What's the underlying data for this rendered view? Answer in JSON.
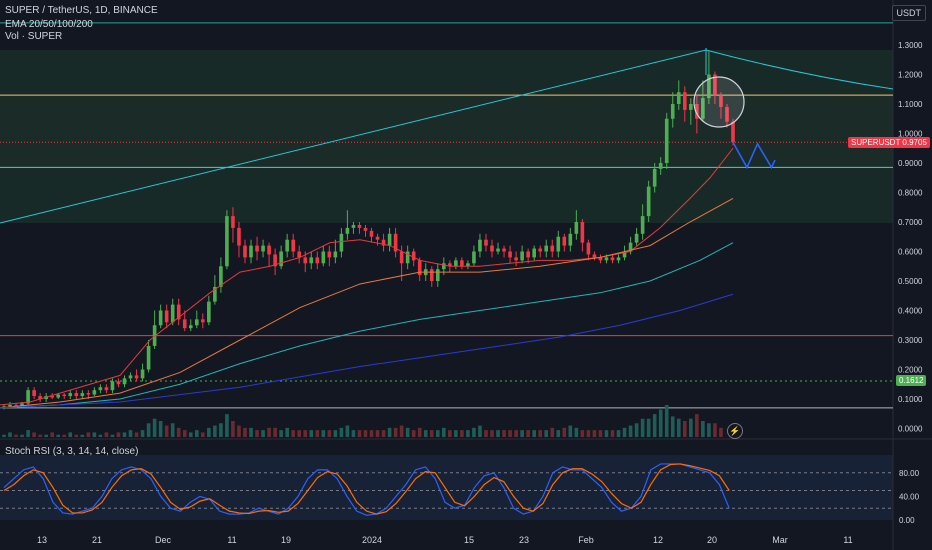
{
  "header": {
    "title": "SUPER / TetherUS, 1D, BINANCE",
    "indicator_ema": "EMA 20/50/100/200",
    "indicator_vol": "Vol · SUPER"
  },
  "rsi_panel": {
    "title": "Stoch RSI (3, 3, 14, 14, close)"
  },
  "badges": {
    "unit": "USDT",
    "price_label": "SUPERUSDT 0.9705",
    "green_level": "0.1612"
  },
  "colors": {
    "background": "#131722",
    "up": "#26a69a",
    "up_bright": "#4caf50",
    "down": "#f23645",
    "ema20": "#e53b3b",
    "ema50": "#e8793a",
    "ema100": "#21b5b5",
    "ema200": "#2a3bd1",
    "resistance_line": "#f5c36b",
    "support_line": "#f23645",
    "k_line": "#2962ff",
    "d_line": "#ff6d00"
  },
  "chart_data": {
    "type": "candlestick",
    "symbol": "SUPER / TetherUS",
    "timeframe": "1D",
    "exchange": "BINANCE",
    "x_ticks": [
      "13",
      "21",
      "Dec",
      "11",
      "19",
      "2024",
      "15",
      "23",
      "Feb",
      "12",
      "20",
      "Mar",
      "11"
    ],
    "y_ticks": [
      "1.3000",
      "1.2000",
      "1.1000",
      "1.0000",
      "0.9000",
      "0.8000",
      "0.7000",
      "0.6000",
      "0.5000",
      "0.4000",
      "0.3000",
      "0.2000",
      "0.1000",
      "0.0000"
    ],
    "ylim": [
      0.0,
      1.3
    ],
    "last_price": 0.9705,
    "levels": [
      {
        "name": "resistance",
        "value": 1.13
      },
      {
        "name": "current",
        "value": 0.9705
      },
      {
        "name": "support-cyan",
        "value": 0.885
      },
      {
        "name": "support-red",
        "value": 0.315
      },
      {
        "name": "green-dotted",
        "value": 0.1612
      },
      {
        "name": "white-base",
        "value": 0.07
      },
      {
        "name": "top-cyan",
        "value": 1.375
      }
    ],
    "ema": {
      "ema20": [
        [
          0,
          0.08
        ],
        [
          30,
          0.09
        ],
        [
          60,
          0.12
        ],
        [
          90,
          0.15
        ],
        [
          120,
          0.18
        ],
        [
          150,
          0.3
        ],
        [
          180,
          0.38
        ],
        [
          210,
          0.46
        ],
        [
          240,
          0.53
        ],
        [
          270,
          0.55
        ],
        [
          300,
          0.58
        ],
        [
          330,
          0.63
        ],
        [
          360,
          0.64
        ],
        [
          390,
          0.62
        ],
        [
          420,
          0.57
        ],
        [
          450,
          0.55
        ],
        [
          480,
          0.55
        ],
        [
          510,
          0.56
        ],
        [
          540,
          0.57
        ],
        [
          570,
          0.57
        ],
        [
          600,
          0.58
        ],
        [
          630,
          0.6
        ],
        [
          660,
          0.68
        ],
        [
          690,
          0.78
        ],
        [
          710,
          0.85
        ],
        [
          733,
          0.95
        ]
      ],
      "ema50": [
        [
          0,
          0.07
        ],
        [
          60,
          0.09
        ],
        [
          120,
          0.12
        ],
        [
          180,
          0.19
        ],
        [
          240,
          0.3
        ],
        [
          300,
          0.41
        ],
        [
          360,
          0.49
        ],
        [
          420,
          0.53
        ],
        [
          480,
          0.53
        ],
        [
          540,
          0.55
        ],
        [
          600,
          0.58
        ],
        [
          650,
          0.62
        ],
        [
          690,
          0.7
        ],
        [
          733,
          0.78
        ]
      ],
      "ema100": [
        [
          0,
          0.07
        ],
        [
          60,
          0.08
        ],
        [
          120,
          0.1
        ],
        [
          180,
          0.15
        ],
        [
          240,
          0.22
        ],
        [
          300,
          0.28
        ],
        [
          360,
          0.33
        ],
        [
          420,
          0.37
        ],
        [
          480,
          0.4
        ],
        [
          540,
          0.43
        ],
        [
          600,
          0.46
        ],
        [
          650,
          0.5
        ],
        [
          700,
          0.57
        ],
        [
          733,
          0.63
        ]
      ],
      "ema200": [
        [
          0,
          0.07
        ],
        [
          120,
          0.09
        ],
        [
          240,
          0.14
        ],
        [
          360,
          0.21
        ],
        [
          480,
          0.27
        ],
        [
          560,
          0.31
        ],
        [
          620,
          0.35
        ],
        [
          680,
          0.4
        ],
        [
          733,
          0.455
        ]
      ]
    },
    "candles": [
      [
        0.07,
        0.075,
        0.065,
        0.08
      ],
      [
        0.075,
        0.08,
        0.07,
        0.09
      ],
      [
        0.08,
        0.078,
        0.07,
        0.085
      ],
      [
        0.078,
        0.085,
        0.075,
        0.09
      ],
      [
        0.085,
        0.13,
        0.08,
        0.14
      ],
      [
        0.13,
        0.11,
        0.1,
        0.14
      ],
      [
        0.11,
        0.1,
        0.09,
        0.12
      ],
      [
        0.1,
        0.11,
        0.09,
        0.12
      ],
      [
        0.11,
        0.105,
        0.1,
        0.12
      ],
      [
        0.105,
        0.115,
        0.1,
        0.12
      ],
      [
        0.115,
        0.11,
        0.1,
        0.12
      ],
      [
        0.11,
        0.12,
        0.1,
        0.13
      ],
      [
        0.12,
        0.11,
        0.1,
        0.13
      ],
      [
        0.11,
        0.12,
        0.1,
        0.13
      ],
      [
        0.12,
        0.115,
        0.1,
        0.13
      ],
      [
        0.115,
        0.13,
        0.11,
        0.14
      ],
      [
        0.13,
        0.14,
        0.12,
        0.15
      ],
      [
        0.14,
        0.13,
        0.12,
        0.15
      ],
      [
        0.13,
        0.16,
        0.12,
        0.17
      ],
      [
        0.16,
        0.15,
        0.14,
        0.17
      ],
      [
        0.15,
        0.17,
        0.14,
        0.18
      ],
      [
        0.17,
        0.18,
        0.16,
        0.19
      ],
      [
        0.18,
        0.17,
        0.16,
        0.2
      ],
      [
        0.17,
        0.2,
        0.16,
        0.22
      ],
      [
        0.2,
        0.28,
        0.19,
        0.3
      ],
      [
        0.28,
        0.35,
        0.27,
        0.4
      ],
      [
        0.35,
        0.4,
        0.34,
        0.42
      ],
      [
        0.4,
        0.36,
        0.34,
        0.42
      ],
      [
        0.36,
        0.42,
        0.35,
        0.44
      ],
      [
        0.42,
        0.37,
        0.35,
        0.44
      ],
      [
        0.37,
        0.34,
        0.33,
        0.4
      ],
      [
        0.34,
        0.35,
        0.33,
        0.37
      ],
      [
        0.35,
        0.37,
        0.34,
        0.4
      ],
      [
        0.37,
        0.36,
        0.34,
        0.39
      ],
      [
        0.36,
        0.43,
        0.35,
        0.45
      ],
      [
        0.43,
        0.48,
        0.42,
        0.52
      ],
      [
        0.48,
        0.55,
        0.46,
        0.58
      ],
      [
        0.55,
        0.72,
        0.54,
        0.74
      ],
      [
        0.72,
        0.68,
        0.63,
        0.75
      ],
      [
        0.68,
        0.62,
        0.58,
        0.7
      ],
      [
        0.62,
        0.58,
        0.56,
        0.64
      ],
      [
        0.58,
        0.62,
        0.56,
        0.64
      ],
      [
        0.62,
        0.6,
        0.57,
        0.65
      ],
      [
        0.6,
        0.62,
        0.58,
        0.64
      ],
      [
        0.62,
        0.59,
        0.55,
        0.63
      ],
      [
        0.59,
        0.55,
        0.52,
        0.61
      ],
      [
        0.55,
        0.6,
        0.54,
        0.62
      ],
      [
        0.6,
        0.64,
        0.58,
        0.66
      ],
      [
        0.64,
        0.6,
        0.58,
        0.66
      ],
      [
        0.6,
        0.58,
        0.56,
        0.62
      ],
      [
        0.58,
        0.56,
        0.53,
        0.6
      ],
      [
        0.56,
        0.58,
        0.54,
        0.6
      ],
      [
        0.58,
        0.56,
        0.54,
        0.6
      ],
      [
        0.56,
        0.6,
        0.55,
        0.62
      ],
      [
        0.6,
        0.58,
        0.55,
        0.62
      ],
      [
        0.58,
        0.6,
        0.56,
        0.64
      ],
      [
        0.6,
        0.66,
        0.58,
        0.68
      ],
      [
        0.66,
        0.68,
        0.64,
        0.74
      ],
      [
        0.68,
        0.69,
        0.66,
        0.7
      ],
      [
        0.69,
        0.68,
        0.66,
        0.7
      ],
      [
        0.68,
        0.67,
        0.65,
        0.69
      ],
      [
        0.67,
        0.65,
        0.63,
        0.68
      ],
      [
        0.65,
        0.64,
        0.62,
        0.66
      ],
      [
        0.64,
        0.62,
        0.6,
        0.66
      ],
      [
        0.62,
        0.66,
        0.6,
        0.68
      ],
      [
        0.66,
        0.6,
        0.58,
        0.68
      ],
      [
        0.6,
        0.56,
        0.5,
        0.62
      ],
      [
        0.56,
        0.6,
        0.54,
        0.62
      ],
      [
        0.6,
        0.57,
        0.55,
        0.61
      ],
      [
        0.57,
        0.52,
        0.5,
        0.58
      ],
      [
        0.52,
        0.54,
        0.5,
        0.56
      ],
      [
        0.54,
        0.5,
        0.48,
        0.55
      ],
      [
        0.5,
        0.54,
        0.48,
        0.56
      ],
      [
        0.54,
        0.56,
        0.52,
        0.58
      ],
      [
        0.56,
        0.55,
        0.53,
        0.57
      ],
      [
        0.55,
        0.57,
        0.54,
        0.58
      ],
      [
        0.57,
        0.55,
        0.54,
        0.58
      ],
      [
        0.55,
        0.56,
        0.54,
        0.57
      ],
      [
        0.56,
        0.6,
        0.55,
        0.62
      ],
      [
        0.6,
        0.64,
        0.58,
        0.66
      ],
      [
        0.64,
        0.62,
        0.6,
        0.66
      ],
      [
        0.62,
        0.6,
        0.58,
        0.64
      ],
      [
        0.6,
        0.61,
        0.59,
        0.63
      ],
      [
        0.61,
        0.6,
        0.58,
        0.62
      ],
      [
        0.6,
        0.58,
        0.56,
        0.62
      ],
      [
        0.58,
        0.57,
        0.55,
        0.6
      ],
      [
        0.57,
        0.6,
        0.56,
        0.62
      ],
      [
        0.6,
        0.58,
        0.56,
        0.61
      ],
      [
        0.58,
        0.61,
        0.57,
        0.62
      ],
      [
        0.61,
        0.6,
        0.58,
        0.62
      ],
      [
        0.6,
        0.62,
        0.58,
        0.64
      ],
      [
        0.62,
        0.6,
        0.58,
        0.64
      ],
      [
        0.6,
        0.65,
        0.58,
        0.67
      ],
      [
        0.65,
        0.62,
        0.6,
        0.66
      ],
      [
        0.62,
        0.66,
        0.6,
        0.68
      ],
      [
        0.66,
        0.7,
        0.64,
        0.74
      ],
      [
        0.7,
        0.63,
        0.6,
        0.71
      ],
      [
        0.63,
        0.59,
        0.57,
        0.64
      ],
      [
        0.59,
        0.58,
        0.57,
        0.6
      ],
      [
        0.58,
        0.57,
        0.56,
        0.59
      ],
      [
        0.57,
        0.58,
        0.56,
        0.59
      ],
      [
        0.58,
        0.57,
        0.56,
        0.59
      ],
      [
        0.57,
        0.58,
        0.56,
        0.59
      ],
      [
        0.58,
        0.6,
        0.57,
        0.62
      ],
      [
        0.6,
        0.63,
        0.59,
        0.65
      ],
      [
        0.63,
        0.66,
        0.62,
        0.68
      ],
      [
        0.66,
        0.72,
        0.64,
        0.76
      ],
      [
        0.72,
        0.82,
        0.7,
        0.84
      ],
      [
        0.82,
        0.88,
        0.8,
        0.9
      ],
      [
        0.88,
        0.9,
        0.86,
        0.92
      ],
      [
        0.9,
        1.05,
        0.88,
        1.07
      ],
      [
        1.05,
        1.1,
        1.02,
        1.14
      ],
      [
        1.1,
        1.14,
        1.08,
        1.18
      ],
      [
        1.14,
        1.08,
        1.04,
        1.16
      ],
      [
        1.08,
        1.1,
        1.03,
        1.12
      ],
      [
        1.1,
        1.05,
        1.0,
        1.13
      ],
      [
        1.05,
        1.12,
        1.04,
        1.18
      ],
      [
        1.12,
        1.2,
        1.1,
        1.28
      ],
      [
        1.2,
        1.13,
        1.1,
        1.21
      ],
      [
        1.13,
        1.09,
        1.05,
        1.14
      ],
      [
        1.09,
        1.04,
        1.02,
        1.1
      ],
      [
        1.04,
        0.97,
        0.96,
        1.05
      ]
    ],
    "projection": [
      [
        0.97,
        0
      ],
      [
        0.885,
        4
      ],
      [
        0.965,
        7
      ],
      [
        0.885,
        11
      ],
      [
        0.91,
        12
      ]
    ],
    "stoch_rsi": {
      "ylim": [
        0,
        100
      ],
      "levels": [
        80,
        50,
        20
      ],
      "y_ticks": [
        "80.00",
        "40.00",
        "0.00"
      ],
      "k": [
        55,
        70,
        85,
        90,
        70,
        30,
        12,
        10,
        15,
        20,
        40,
        70,
        85,
        90,
        85,
        70,
        40,
        20,
        15,
        30,
        40,
        35,
        15,
        10,
        10,
        12,
        20,
        15,
        10,
        20,
        40,
        70,
        85,
        85,
        70,
        40,
        15,
        8,
        10,
        20,
        40,
        60,
        85,
        90,
        70,
        30,
        20,
        25,
        55,
        75,
        80,
        55,
        20,
        10,
        15,
        40,
        80,
        90,
        85,
        85,
        70,
        55,
        30,
        15,
        20,
        40,
        85,
        95,
        95,
        95,
        90,
        85,
        80,
        60,
        20
      ],
      "d": [
        50,
        60,
        75,
        85,
        80,
        55,
        25,
        12,
        12,
        17,
        30,
        55,
        75,
        85,
        87,
        78,
        55,
        30,
        18,
        22,
        32,
        36,
        25,
        15,
        12,
        11,
        15,
        16,
        13,
        15,
        28,
        50,
        72,
        82,
        78,
        58,
        30,
        15,
        10,
        14,
        28,
        48,
        70,
        82,
        80,
        55,
        30,
        24,
        40,
        60,
        72,
        65,
        40,
        20,
        15,
        28,
        60,
        80,
        87,
        87,
        78,
        65,
        45,
        28,
        20,
        30,
        60,
        85,
        94,
        95,
        92,
        88,
        84,
        75,
        50
      ]
    },
    "volume_relative": [
      1,
      2,
      1,
      1,
      3,
      2,
      1,
      1,
      2,
      1,
      1,
      2,
      1,
      1,
      2,
      2,
      1,
      2,
      1,
      2,
      2,
      3,
      2,
      3,
      6,
      8,
      7,
      5,
      6,
      4,
      3,
      2,
      3,
      2,
      4,
      5,
      6,
      10,
      7,
      5,
      4,
      4,
      3,
      3,
      4,
      4,
      3,
      4,
      3,
      3,
      3,
      3,
      3,
      3,
      3,
      3,
      4,
      5,
      3,
      3,
      3,
      3,
      3,
      3,
      4,
      4,
      5,
      4,
      3,
      4,
      3,
      3,
      3,
      4,
      3,
      3,
      3,
      3,
      4,
      5,
      3,
      3,
      3,
      3,
      3,
      3,
      3,
      3,
      3,
      3,
      3,
      4,
      3,
      4,
      5,
      4,
      3,
      3,
      3,
      3,
      3,
      3,
      3,
      4,
      5,
      6,
      8,
      8,
      10,
      12,
      14,
      9,
      8,
      7,
      8,
      10,
      7,
      6,
      6,
      4
    ]
  }
}
